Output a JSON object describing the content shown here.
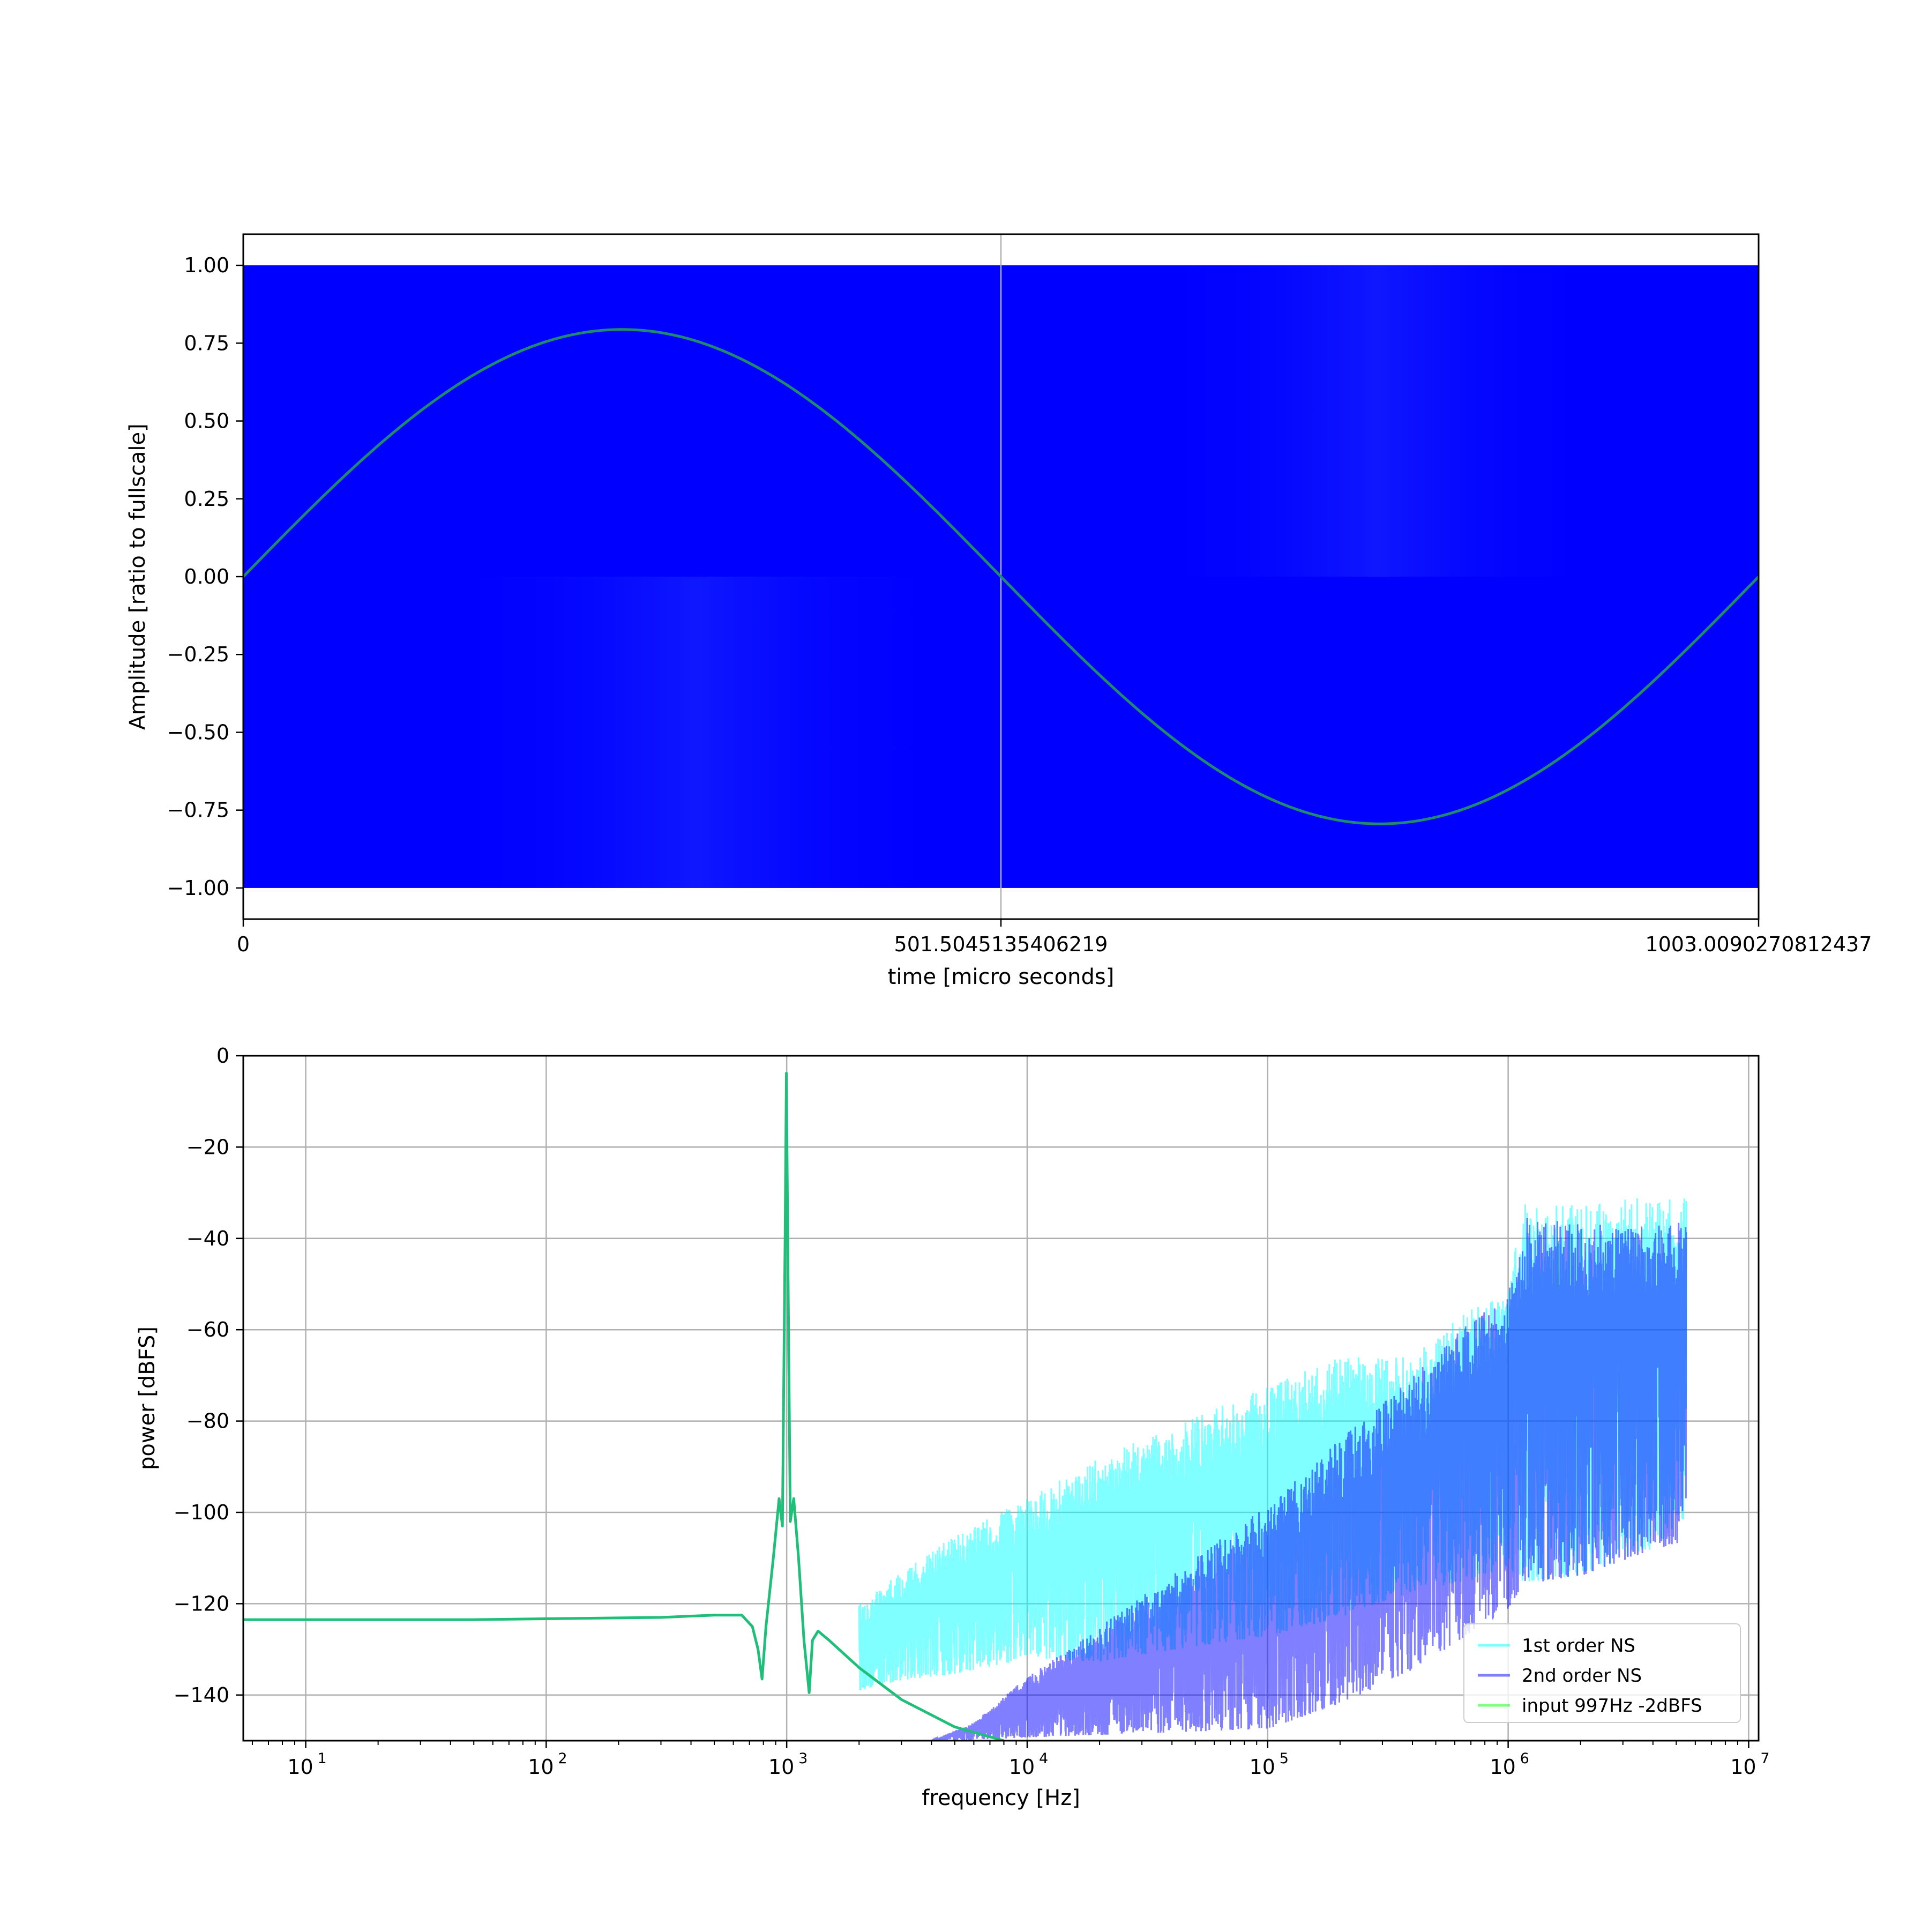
{
  "figure": {
    "background": "#ffffff"
  },
  "chart_data": [
    {
      "type": "line",
      "xlabel": "time [micro seconds]",
      "ylabel": "Amplitude [ratio to fullscale]",
      "xlim": [
        0,
        1003.0090270812437
      ],
      "ylim": [
        -1.1,
        1.1
      ],
      "x_tick_labels": [
        "0",
        "501.5045135406219",
        "1003.0090270812437"
      ],
      "x_tick_values": [
        0,
        501.5045135406219,
        1003.0090270812437
      ],
      "y_tick_labels": [
        "1.00",
        "0.75",
        "0.50",
        "0.25",
        "0.00",
        "−0.25",
        "−0.50",
        "−0.75",
        "−1.00"
      ],
      "y_tick_values": [
        1.0,
        0.75,
        0.5,
        0.25,
        0.0,
        -0.25,
        -0.5,
        -0.75,
        -1.0
      ],
      "grid": "x-only",
      "series": [
        {
          "kind": "pdm-bitstream",
          "color": "#0000ff",
          "levels": [
            -1.0,
            1.0
          ]
        },
        {
          "kind": "sine",
          "color": "#1f8a70",
          "amplitude": 0.794,
          "frequency_hz": 997,
          "x": [
            0,
            100,
            200,
            250,
            300,
            400,
            501.5,
            600,
            700,
            750,
            800,
            900,
            1003.0
          ],
          "y": [
            0.0,
            0.466,
            0.754,
            0.794,
            0.754,
            0.466,
            0.0,
            -0.466,
            -0.754,
            -0.794,
            -0.754,
            -0.466,
            0.028
          ]
        }
      ]
    },
    {
      "type": "line",
      "xlabel": "frequency [Hz]",
      "ylabel": "power [dBFS]",
      "xscale": "log",
      "xlim": [
        5.5,
        11000000
      ],
      "ylim": [
        -150,
        0
      ],
      "x_tick_values": [
        10,
        100,
        1000,
        10000,
        100000,
        1000000,
        10000000
      ],
      "x_tick_bases": [
        "10",
        "10",
        "10",
        "10",
        "10",
        "10",
        "10"
      ],
      "x_tick_exponents": [
        "1",
        "2",
        "3",
        "4",
        "5",
        "6",
        "7"
      ],
      "y_tick_labels": [
        "0",
        "−20",
        "−40",
        "−60",
        "−80",
        "−100",
        "−120",
        "−140"
      ],
      "y_tick_values": [
        0,
        -20,
        -40,
        -60,
        -80,
        -100,
        -120,
        -140
      ],
      "grid": true,
      "legend_position": "lower right",
      "series": [
        {
          "name": "1st order NS",
          "color": "#00ffff",
          "alpha": 0.5,
          "envelope": {
            "f": [
              2000,
              3000,
              5000,
              10000,
              20000,
              50000,
              100000,
              200000,
              400000,
              700000,
              1000000,
              1150000,
              2000000,
              4000000,
              5500000
            ],
            "upper": [
              -120,
              -113,
              -105,
              -97,
              -88,
              -79,
              -72,
              -66,
              -66,
              -55,
              -52,
              -32,
              -32,
              -31,
              -30
            ],
            "lower": [
              -140,
              -138,
              -137,
              -134,
              -135,
              -132,
              -130,
              -126,
              -120,
              -118,
              -115,
              -120,
              -118,
              -112,
              -105
            ]
          }
        },
        {
          "name": "2nd order NS",
          "color": "#0000ff",
          "alpha": 0.5,
          "envelope": {
            "f": [
              4000,
              6000,
              10000,
              20000,
              50000,
              100000,
              200000,
              400000,
              700000,
              1000000,
              1150000,
              2000000,
              4000000,
              5500000
            ],
            "upper": [
              -150,
              -146,
              -136,
              -125,
              -110,
              -98,
              -84,
              -70,
              -58,
              -52,
              -35,
              -37,
              -37,
              -36
            ],
            "lower": [
              -150,
              -150,
              -150,
              -150,
              -150,
              -150,
              -145,
              -138,
              -130,
              -125,
              -120,
              -118,
              -112,
              -110
            ]
          }
        },
        {
          "name": "input 997Hz -2dBFS",
          "color": "#00ff00",
          "alpha": 0.5,
          "f": [
            5.5,
            10,
            50,
            100,
            300,
            500,
            650,
            720,
            760,
            790,
            820,
            880,
            930,
            960,
            985,
            997,
            1010,
            1035,
            1070,
            1120,
            1180,
            1240,
            1280,
            1350,
            1500,
            2000,
            3000,
            5000,
            8000
          ],
          "db": [
            -123.5,
            -123.5,
            -123.5,
            -123.3,
            -123,
            -122.5,
            -122.5,
            -125,
            -130,
            -136.5,
            -125,
            -110,
            -97,
            -103,
            -40,
            -3.8,
            -40,
            -102,
            -97,
            -110,
            -128,
            -139.5,
            -128,
            -126,
            -128,
            -134,
            -141,
            -147,
            -150
          ]
        }
      ]
    }
  ]
}
